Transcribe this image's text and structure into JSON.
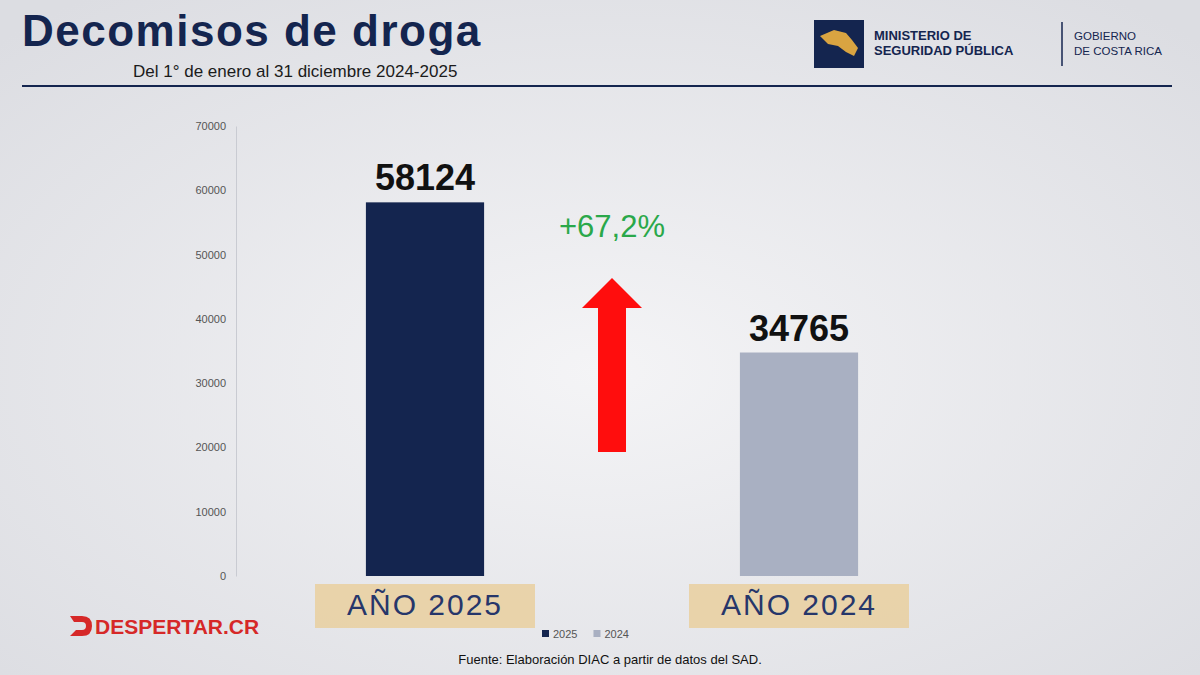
{
  "chart_data": {
    "type": "bar",
    "title": "Decomisos de droga",
    "subtitle": "Del 1° de enero al 31 diciembre 2024-2025",
    "categories": [
      "AÑO 2025",
      "AÑO 2024"
    ],
    "series": [
      {
        "name": "2025",
        "color": "#14254f",
        "values": [
          58124,
          null
        ]
      },
      {
        "name": "2024",
        "color": "#a9b0c2",
        "values": [
          null,
          34765
        ]
      }
    ],
    "ylim": [
      0,
      70000
    ],
    "yticks": [
      0,
      10000,
      20000,
      30000,
      40000,
      50000,
      60000,
      70000
    ],
    "grid": false,
    "data_labels": true,
    "legend": "bottom",
    "annotations": [
      "+67,2%"
    ],
    "source": "Fuente: Elaboración DIAC a partir de datos del SAD."
  },
  "branding": {
    "ministry": [
      "MINISTERIO DE",
      "SEGURIDAD PÚBLICA"
    ],
    "government": [
      "GOBIERNO",
      "DE COSTA RICA"
    ],
    "watermark": "DESPERTAR.CR"
  }
}
